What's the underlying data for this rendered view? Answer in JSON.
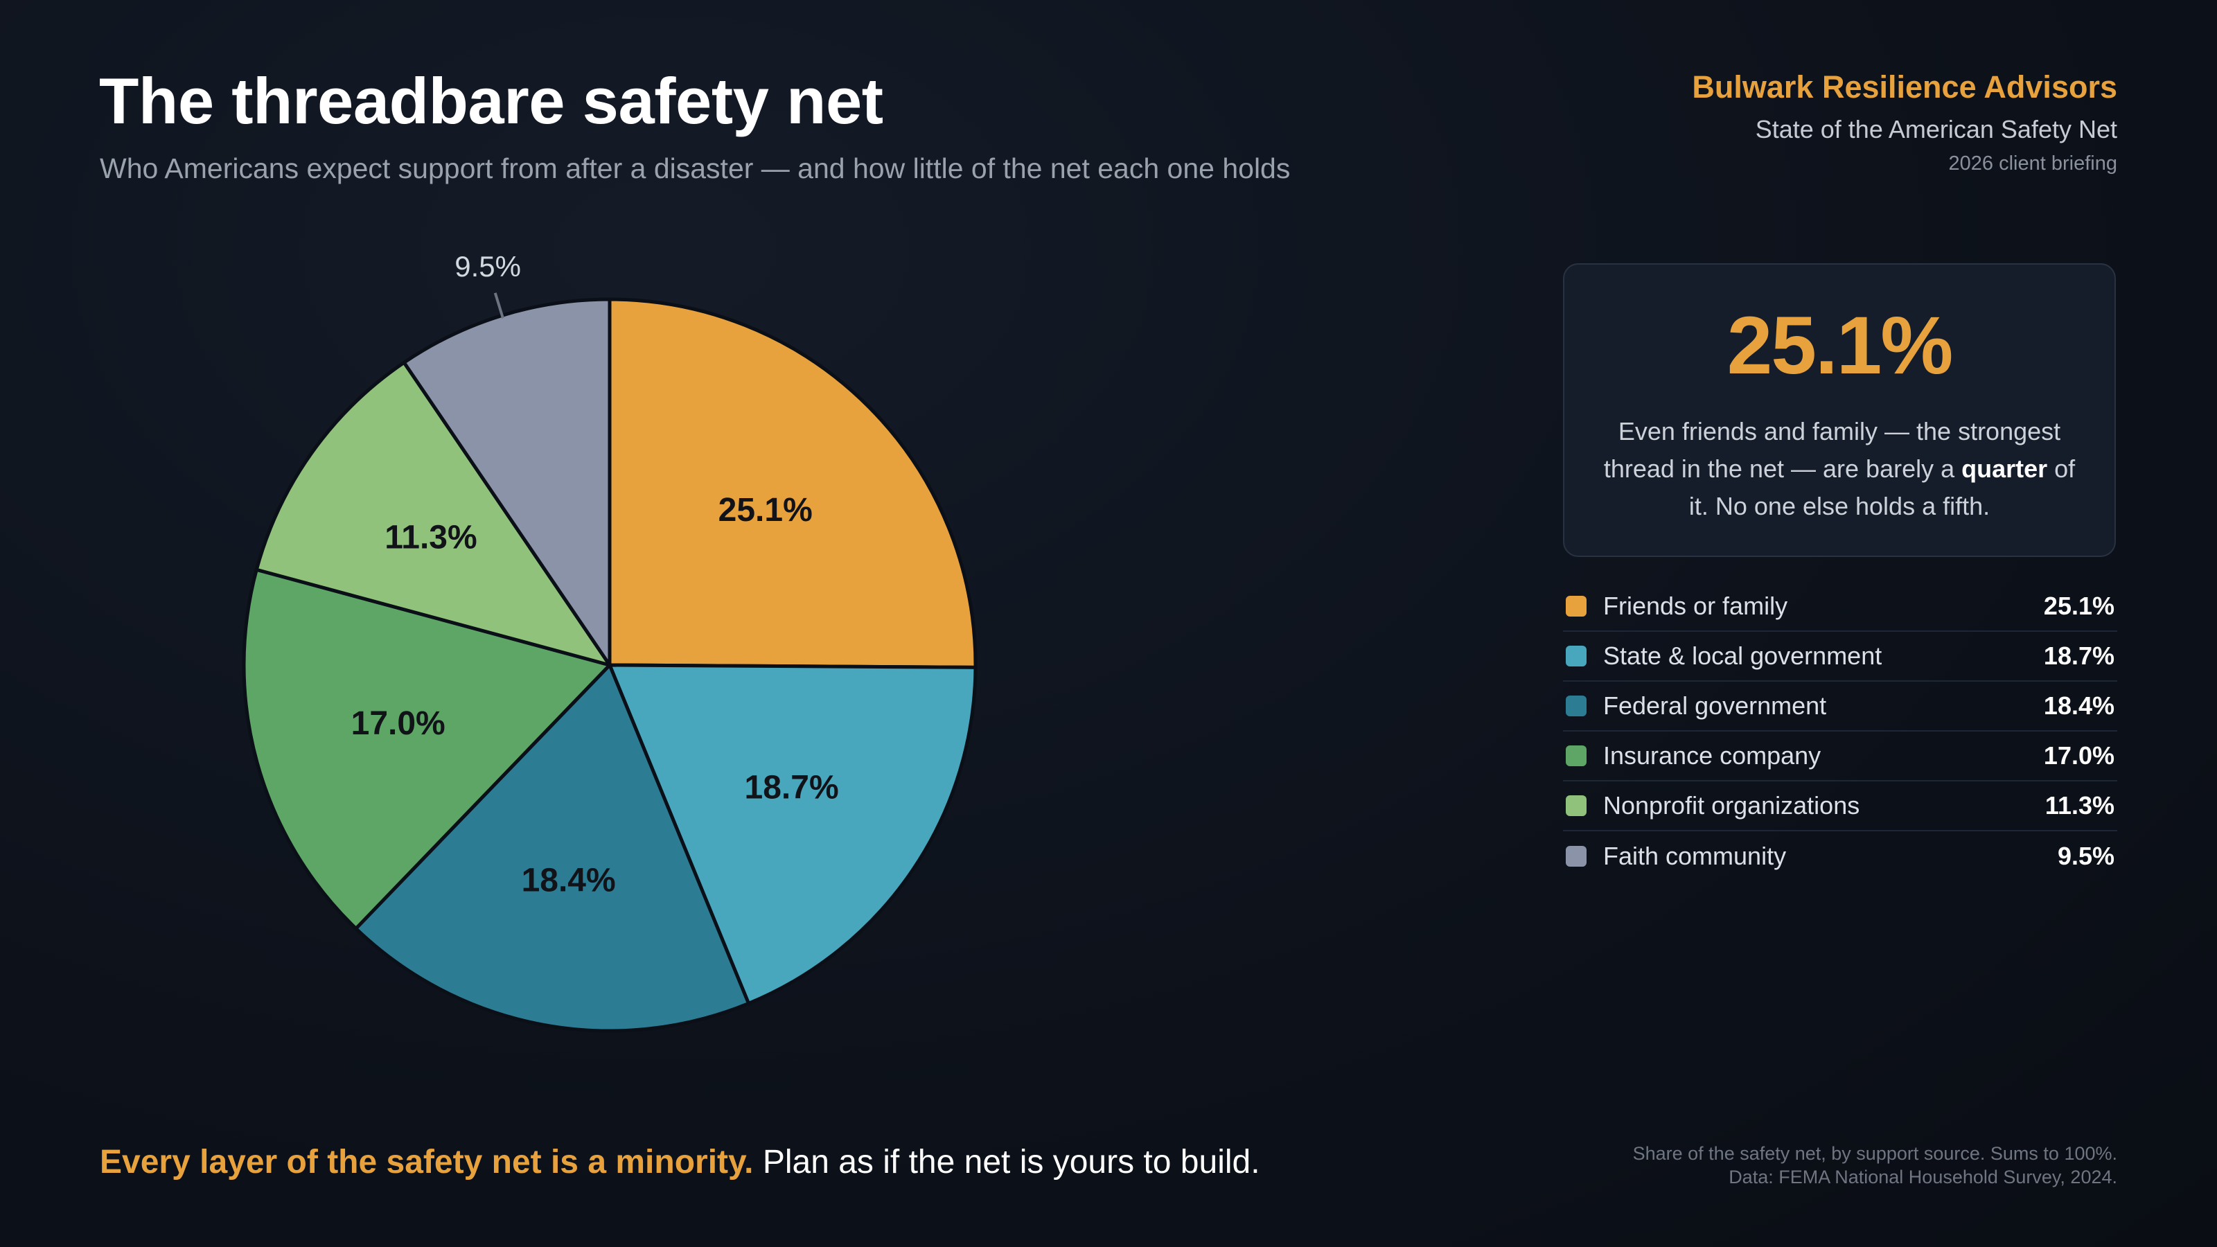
{
  "header": {
    "title": "The threadbare safety net",
    "subtitle": "Who Americans expect support from after a disaster — and how little of the net each one holds"
  },
  "brand": {
    "name": "Bulwark Resilience Advisors",
    "report": "State of the American Safety Net",
    "edition": "2026 client briefing"
  },
  "callout": {
    "value": "25.1%",
    "text_before": "Even friends and family — the strongest thread in the net — are barely a ",
    "text_emphasis": "quarter",
    "text_after": " of it. No one else holds a fifth."
  },
  "chart_data": {
    "type": "pie",
    "categories": [
      "Friends or family",
      "State & local government",
      "Federal government",
      "Insurance company",
      "Nonprofit organizations",
      "Faith community"
    ],
    "values": [
      25.1,
      18.7,
      18.4,
      17.0,
      11.3,
      9.5
    ],
    "value_labels": [
      "25.1%",
      "18.7%",
      "18.4%",
      "17.0%",
      "11.3%",
      "9.5%"
    ],
    "colors": [
      "#e8a23d",
      "#48a6bd",
      "#2c7d94",
      "#5ea665",
      "#91c27b",
      "#8a93a8"
    ],
    "start_angle": "12 o'clock",
    "direction": "clockwise",
    "legend_position": "right"
  },
  "takeaway": {
    "strong": "Every layer of the safety net is a minority.",
    "rest": " Plan as if the net is yours to build."
  },
  "footnote": {
    "line1": "Share of the safety net, by support source. Sums to 100%.",
    "line2": "Data: FEMA National Household Survey, 2024."
  }
}
